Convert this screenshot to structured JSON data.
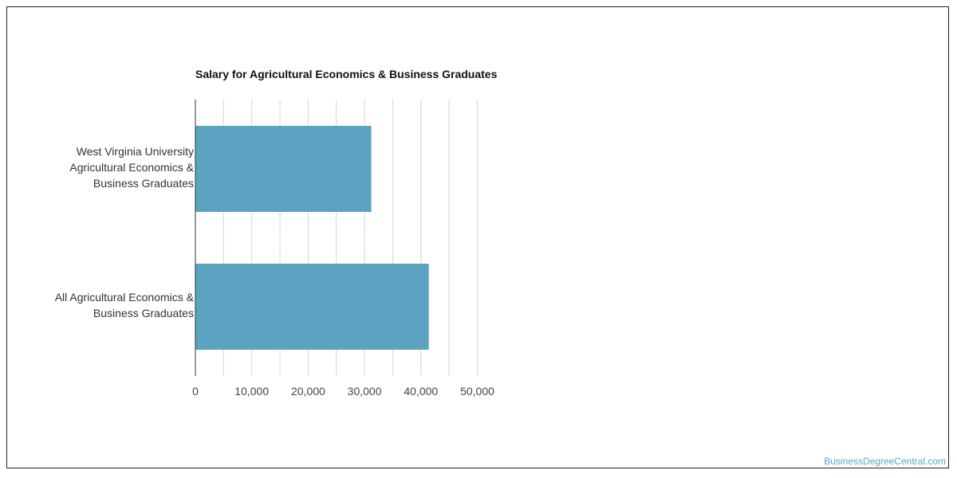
{
  "source": "BusinessDegreeCentral.com",
  "colors": {
    "bar": "#5ba3c0",
    "grid": "#d6d6d6",
    "axis": "#333333"
  },
  "chart_data": {
    "type": "bar",
    "orientation": "horizontal",
    "title": "Salary for Agricultural Economics & Business Graduates",
    "categories": [
      "West Virginia University Agricultural Economics & Business Graduates",
      "All Agricultural Economics & Business Graduates"
    ],
    "category_lines": [
      [
        "West Virginia University",
        "Agricultural Economics &",
        "Business Graduates"
      ],
      [
        "All Agricultural Economics &",
        "Business Graduates"
      ]
    ],
    "values": [
      31200,
      41400
    ],
    "xlim": [
      0,
      50000
    ],
    "xticks": [
      0,
      10000,
      20000,
      30000,
      40000,
      50000
    ],
    "xtick_labels": [
      "0",
      "10,000",
      "20,000",
      "30,000",
      "40,000",
      "50,000"
    ],
    "grid": true,
    "xlabel": "",
    "ylabel": ""
  }
}
